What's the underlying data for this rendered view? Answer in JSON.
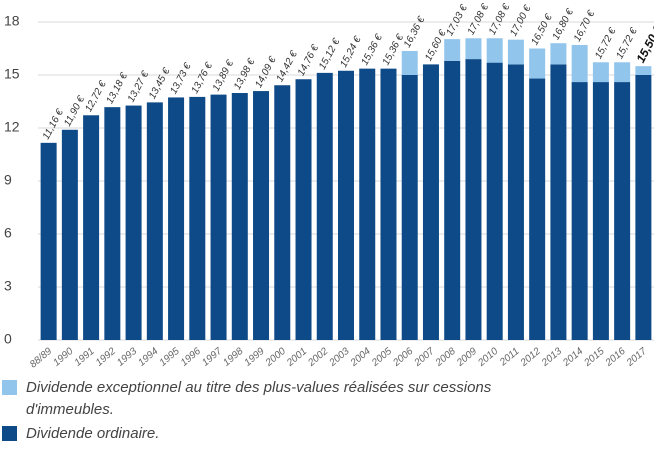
{
  "chart_data": {
    "type": "stacked_bar",
    "categories": [
      "88/89",
      "1990",
      "1991",
      "1992",
      "1993",
      "1994",
      "1995",
      "1996",
      "1997",
      "1998",
      "1999",
      "2000",
      "2001",
      "2002",
      "2003",
      "2004",
      "2005",
      "2006",
      "2007",
      "2008",
      "2009",
      "2010",
      "2011",
      "2012",
      "2013",
      "2014",
      "2015",
      "2016",
      "2017"
    ],
    "series": [
      {
        "name": "Dividende ordinaire.",
        "color": "#0d4a87",
        "values": [
          11.16,
          11.9,
          12.72,
          13.18,
          13.27,
          13.45,
          13.73,
          13.76,
          13.89,
          13.98,
          14.09,
          14.42,
          14.76,
          15.12,
          15.24,
          15.36,
          15.36,
          15.0,
          15.6,
          15.8,
          15.9,
          15.7,
          15.6,
          14.8,
          15.6,
          14.6,
          14.6,
          14.6,
          15.0
        ]
      },
      {
        "name": "Dividende exceptionnel au titre des plus-values réalisées sur cessions d'immeubles.",
        "color": "#92c5ec",
        "values": [
          null,
          null,
          null,
          null,
          null,
          null,
          null,
          null,
          null,
          null,
          null,
          null,
          null,
          null,
          null,
          null,
          null,
          1.36,
          null,
          1.23,
          1.18,
          1.38,
          1.4,
          1.7,
          1.2,
          2.1,
          1.12,
          1.12,
          0.5
        ]
      }
    ],
    "totals": [
      11.16,
      11.9,
      12.72,
      13.18,
      13.27,
      13.45,
      13.73,
      13.76,
      13.89,
      13.98,
      14.09,
      14.42,
      14.76,
      15.12,
      15.24,
      15.36,
      15.36,
      16.36,
      15.6,
      17.03,
      17.08,
      17.08,
      17.0,
      16.5,
      16.8,
      16.7,
      15.72,
      15.72,
      15.5
    ],
    "total_labels": [
      "11,16 €",
      "11,90 €",
      "12,72 €",
      "13,18 €",
      "13,27 €",
      "13,45 €",
      "13,73 €",
      "13,76 €",
      "13,89 €",
      "13,98 €",
      "14,09 €",
      "14,42 €",
      "14,76 €",
      "15,12 €",
      "15,24 €",
      "15,36 €",
      "15,36 €",
      "16,36 €",
      "15,60 €",
      "17,03 €",
      "17,08 €",
      "17,08 €",
      "17,00 €",
      "16,50 €",
      "16,80 €",
      "16,70 €",
      "15,72 €",
      "15,72 €",
      "15,50 €"
    ],
    "highlight_last_label": true,
    "ylim": [
      0,
      18
    ],
    "yticks": [
      0,
      3,
      6,
      9,
      12,
      15,
      18
    ],
    "grid": true
  }
}
